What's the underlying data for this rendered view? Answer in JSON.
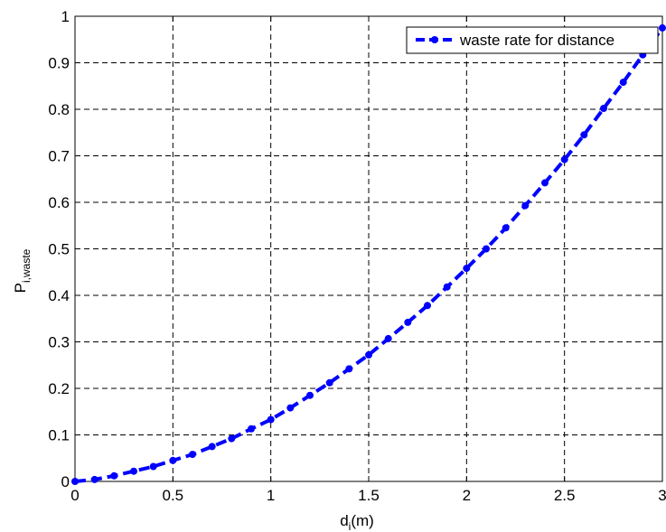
{
  "chart_data": {
    "type": "line",
    "title": "",
    "xlabel": {
      "main": "d",
      "sub": "i",
      "suffix": "(m)"
    },
    "ylabel": {
      "main": "P",
      "sub": "i,waste"
    },
    "xlim": [
      0,
      3
    ],
    "ylim": [
      0,
      1
    ],
    "x_ticks": [
      "0",
      "0.5",
      "1",
      "1.5",
      "2",
      "2.5",
      "3"
    ],
    "y_ticks": [
      "0",
      "0.1",
      "0.2",
      "0.3",
      "0.4",
      "0.5",
      "0.6",
      "0.7",
      "0.8",
      "0.9",
      "1"
    ],
    "grid": true,
    "legend_position": "top-right",
    "series": [
      {
        "name": "waste rate for distance",
        "color": "#0000ff",
        "line_style": "dashed",
        "marker": "circle",
        "x": [
          0,
          0.1,
          0.2,
          0.3,
          0.4,
          0.5,
          0.6,
          0.7,
          0.8,
          0.9,
          1.0,
          1.1,
          1.2,
          1.3,
          1.4,
          1.5,
          1.6,
          1.7,
          1.8,
          1.9,
          2.0,
          2.1,
          2.2,
          2.3,
          2.4,
          2.5,
          2.6,
          2.7,
          2.8,
          2.9,
          3.0
        ],
        "y": [
          0.0,
          0.004,
          0.012,
          0.022,
          0.032,
          0.045,
          0.058,
          0.075,
          0.092,
          0.113,
          0.133,
          0.158,
          0.185,
          0.212,
          0.242,
          0.272,
          0.307,
          0.342,
          0.378,
          0.418,
          0.458,
          0.5,
          0.545,
          0.593,
          0.642,
          0.692,
          0.745,
          0.802,
          0.858,
          0.917,
          0.975
        ]
      }
    ]
  }
}
